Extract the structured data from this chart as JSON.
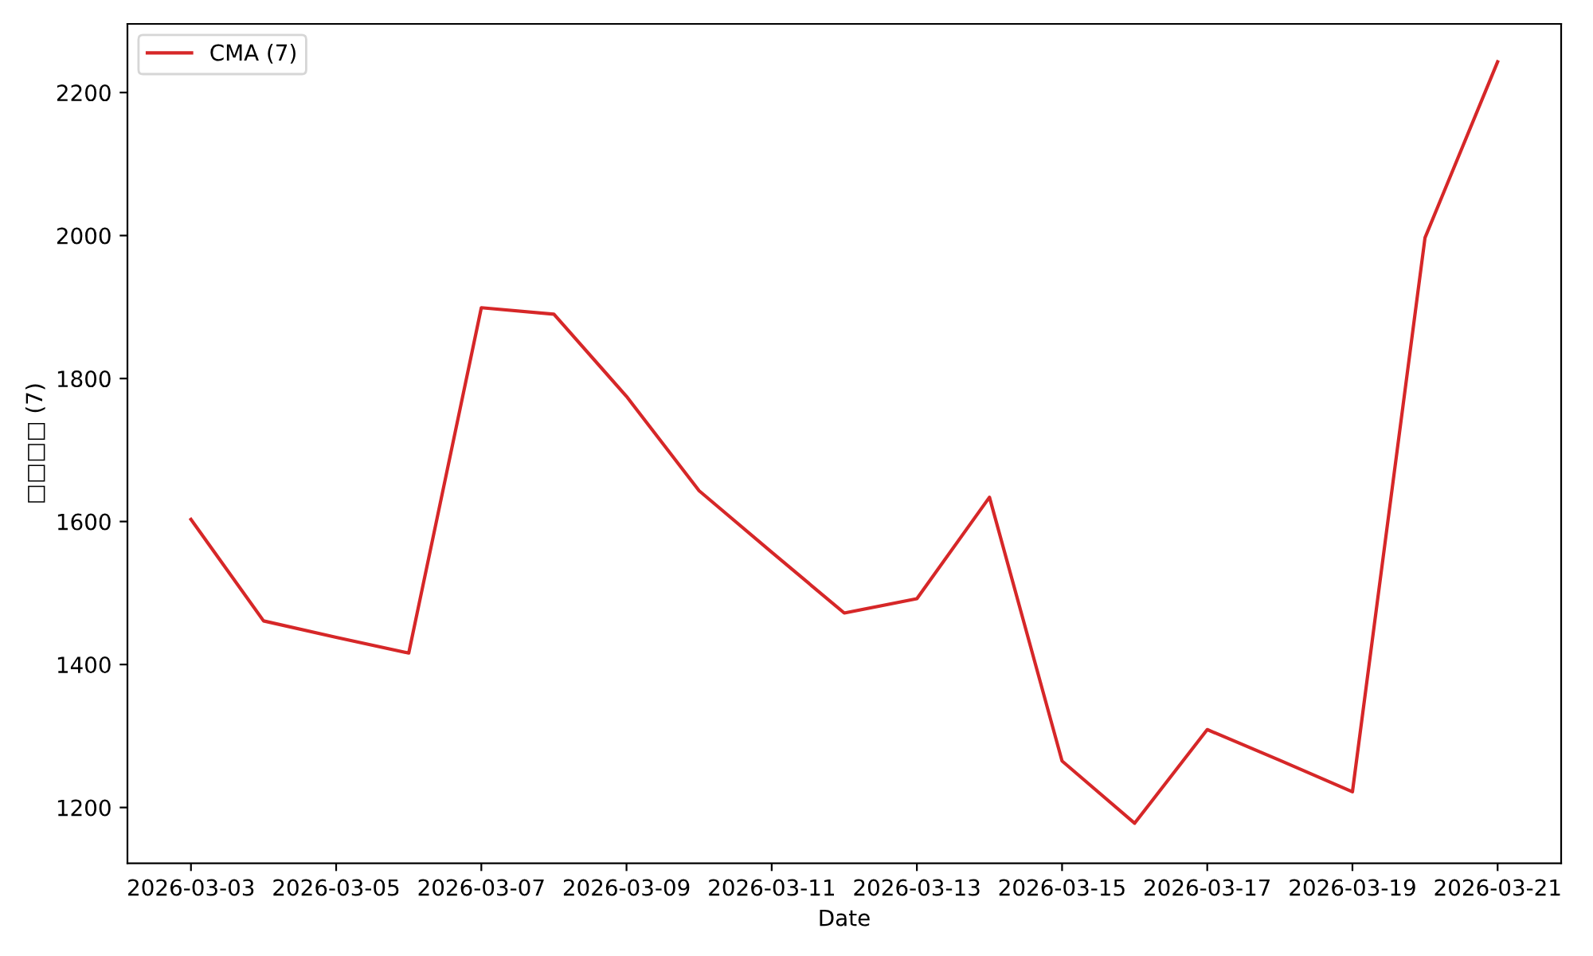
{
  "chart_data": {
    "type": "line",
    "xlabel": "Date",
    "ylabel": "□□□□ (7)",
    "x": [
      "2026-03-03",
      "2026-03-04",
      "2026-03-05",
      "2026-03-06",
      "2026-03-07",
      "2026-03-08",
      "2026-03-09",
      "2026-03-10",
      "2026-03-11",
      "2026-03-12",
      "2026-03-13",
      "2026-03-14",
      "2026-03-15",
      "2026-03-16",
      "2026-03-17",
      "2026-03-18",
      "2026-03-19",
      "2026-03-20",
      "2026-03-21"
    ],
    "series": [
      {
        "name": "CMA (7)",
        "color": "#d62728",
        "values": [
          1603,
          1461,
          1438,
          1416,
          1899,
          1890,
          1775,
          1643,
          1557,
          1472,
          1492,
          1634,
          1265,
          1178,
          1309,
          1266,
          1222,
          1997,
          2243
        ]
      }
    ],
    "xlim": [
      "2026-03-02T03:00",
      "2026-03-21T21:00"
    ],
    "xticks": [
      "2026-03-03",
      "2026-03-05",
      "2026-03-07",
      "2026-03-09",
      "2026-03-11",
      "2026-03-13",
      "2026-03-15",
      "2026-03-17",
      "2026-03-19",
      "2026-03-21"
    ],
    "ylim": [
      1122,
      2296
    ],
    "yticks": [
      1200,
      1400,
      1600,
      1800,
      2000,
      2200
    ],
    "grid": false,
    "legend": "top left",
    "marker": "none",
    "line_style": "solid"
  }
}
